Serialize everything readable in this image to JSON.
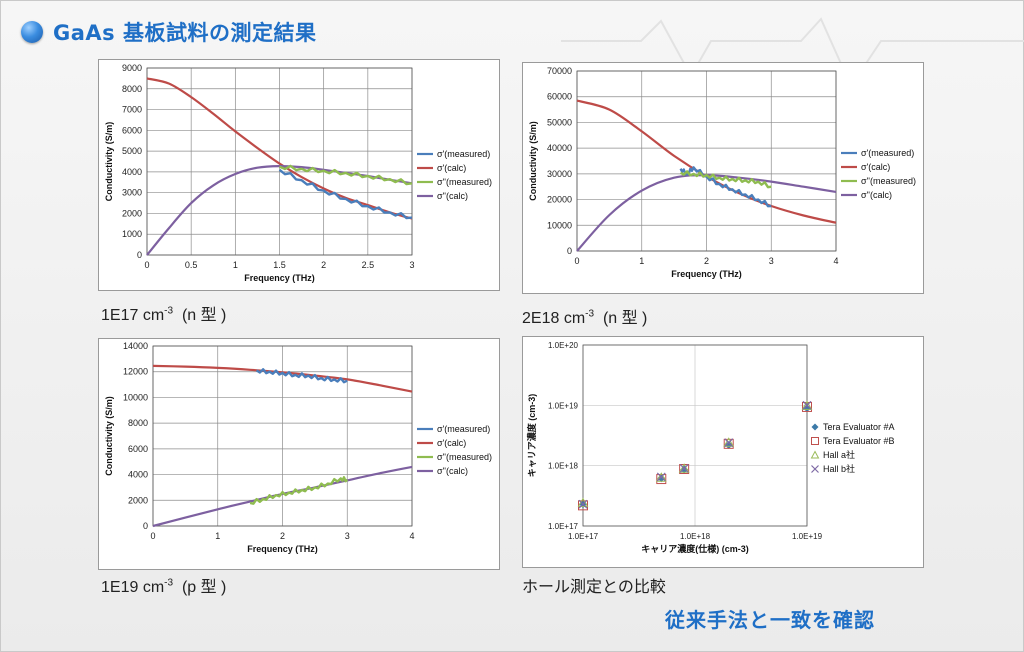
{
  "slide": {
    "title": "GaAs 基板試料の測定結果",
    "conclusion": "従来手法と一致を確認"
  },
  "colors": {
    "title_blue": "#1f6fc6",
    "sigma1_measured": "#4a7ebb",
    "sigma1_calc": "#be4b48",
    "sigma2_measured": "#8fbc50",
    "sigma2_calc": "#7d60a0",
    "tera_a": "#3c7aa8",
    "tera_b": "#c0504d",
    "hall_a": "#9bbb59",
    "hall_b": "#7e6aa6"
  },
  "captions": {
    "c1_main": "1E17 cm",
    "c1_exp": "-3",
    "c1_type": "(n 型 )",
    "c2_main": "2E18 cm",
    "c2_exp": "-3",
    "c2_type": "(n 型 )",
    "c3_main": "1E19 cm",
    "c3_exp": "-3",
    "c3_type": "(p 型 )",
    "c4": "ホール測定との比較"
  },
  "chart_data": [
    {
      "id": "chart1",
      "type": "line",
      "xlabel": "Frequency (THz)",
      "ylabel": "Conductivity (S/m)",
      "xlim": [
        0,
        3
      ],
      "ylim": [
        0,
        9000
      ],
      "xticks": [
        "0",
        "0.5",
        "1",
        "1.5",
        "2",
        "2.5",
        "3"
      ],
      "yticks": [
        "0",
        "1000",
        "2000",
        "3000",
        "4000",
        "5000",
        "6000",
        "7000",
        "8000",
        "9000"
      ],
      "grid": true,
      "legend": "right",
      "series": [
        {
          "name": "σ'(measured)",
          "x": [
            1.5,
            1.75,
            2.0,
            2.25,
            2.5,
            2.75,
            3.0
          ],
          "values": [
            4100,
            3600,
            3100,
            2700,
            2350,
            2050,
            1800
          ]
        },
        {
          "name": "σ'(calc)",
          "x": [
            0,
            0.25,
            0.5,
            0.75,
            1.0,
            1.25,
            1.5,
            1.75,
            2.0,
            2.25,
            2.5,
            2.75,
            3.0
          ],
          "values": [
            8500,
            8250,
            7600,
            6800,
            5950,
            5150,
            4400,
            3750,
            3200,
            2750,
            2400,
            2050,
            1750
          ]
        },
        {
          "name": "σ''(measured)",
          "x": [
            1.5,
            1.75,
            2.0,
            2.25,
            2.5,
            2.75,
            3.0
          ],
          "values": [
            4250,
            4150,
            4050,
            3950,
            3800,
            3650,
            3450
          ]
        },
        {
          "name": "σ''(calc)",
          "x": [
            0,
            0.25,
            0.5,
            0.75,
            1.0,
            1.25,
            1.5,
            1.75,
            2.0,
            2.25,
            2.5,
            2.75,
            3.0
          ],
          "values": [
            0,
            1300,
            2500,
            3350,
            3900,
            4200,
            4280,
            4230,
            4100,
            3950,
            3800,
            3620,
            3450
          ]
        }
      ]
    },
    {
      "id": "chart2",
      "type": "line",
      "xlabel": "Frequency (THz)",
      "ylabel": "Conductivity (S/m)",
      "xlim": [
        0,
        4
      ],
      "ylim": [
        0,
        70000
      ],
      "xticks": [
        "0",
        "1",
        "2",
        "3",
        "4"
      ],
      "yticks": [
        "0",
        "10000",
        "20000",
        "30000",
        "40000",
        "50000",
        "60000",
        "70000"
      ],
      "grid": true,
      "legend": "right",
      "series": [
        {
          "name": "σ'(measured)",
          "x": [
            1.6,
            1.7,
            1.8,
            2.0,
            2.2,
            2.4,
            2.6,
            2.8,
            3.0
          ],
          "values": [
            32000,
            30000,
            32500,
            29000,
            26000,
            24000,
            22000,
            20000,
            17500
          ]
        },
        {
          "name": "σ'(calc)",
          "x": [
            0,
            0.5,
            1.0,
            1.5,
            2.0,
            2.5,
            3.0,
            3.5,
            4.0
          ],
          "values": [
            58500,
            55000,
            46500,
            37000,
            29000,
            22500,
            17500,
            13800,
            11000
          ]
        },
        {
          "name": "σ''(measured)",
          "x": [
            1.6,
            1.8,
            2.0,
            2.2,
            2.4,
            2.6,
            2.8,
            3.0
          ],
          "values": [
            30500,
            30000,
            29500,
            28500,
            28000,
            27500,
            27000,
            25000
          ]
        },
        {
          "name": "σ''(calc)",
          "x": [
            0,
            0.5,
            1.0,
            1.5,
            2.0,
            2.5,
            3.0,
            3.5,
            4.0
          ],
          "values": [
            0,
            14000,
            23500,
            28500,
            29500,
            28500,
            27000,
            25000,
            23000
          ]
        }
      ]
    },
    {
      "id": "chart3",
      "type": "line",
      "xlabel": "Frequency (THz)",
      "ylabel": "Conductivity (S/m)",
      "xlim": [
        0,
        4
      ],
      "ylim": [
        0,
        14000
      ],
      "xticks": [
        "0",
        "1",
        "2",
        "3",
        "4"
      ],
      "yticks": [
        "0",
        "2000",
        "4000",
        "6000",
        "8000",
        "10000",
        "12000",
        "14000"
      ],
      "grid": true,
      "legend": "right",
      "series": [
        {
          "name": "σ'(measured)",
          "x": [
            1.6,
            1.8,
            2.0,
            2.2,
            2.4,
            2.6,
            2.8,
            3.0
          ],
          "values": [
            12100,
            12000,
            11900,
            11750,
            11700,
            11500,
            11400,
            11300
          ]
        },
        {
          "name": "σ'(calc)",
          "x": [
            0,
            0.5,
            1.0,
            1.5,
            2.0,
            2.5,
            3.0,
            3.5,
            4.0
          ],
          "values": [
            12450,
            12400,
            12300,
            12150,
            11950,
            11700,
            11400,
            10950,
            10450
          ]
        },
        {
          "name": "σ''(measured)",
          "x": [
            1.5,
            1.7,
            1.9,
            2.1,
            2.3,
            2.5,
            2.7,
            2.9,
            3.0
          ],
          "values": [
            1800,
            2100,
            2400,
            2600,
            2800,
            3000,
            3300,
            3700,
            3600
          ]
        },
        {
          "name": "σ''(calc)",
          "x": [
            0,
            0.5,
            1.0,
            1.5,
            2.0,
            2.5,
            3.0,
            3.5,
            4.0
          ],
          "values": [
            0,
            650,
            1300,
            1900,
            2500,
            3000,
            3550,
            4100,
            4600
          ]
        }
      ]
    },
    {
      "id": "chart4",
      "type": "scatter",
      "xscale": "log",
      "yscale": "log",
      "xlabel": "キャリア濃度(仕様) (cm-3)",
      "ylabel": "キャリア濃度 (cm-3)",
      "xlim": [
        1e+17,
        1e+19
      ],
      "ylim": [
        1e+17,
        1e+20
      ],
      "xticks": [
        "1.0E+17",
        "1.0E+18",
        "1.0E+19"
      ],
      "yticks": [
        "1.0E+17",
        "1.0E+18",
        "1.0E+19",
        "1.0E+20"
      ],
      "grid": true,
      "legend": "right",
      "series": [
        {
          "name": "Tera Evaluator #A",
          "x": [
            1e+17,
            5e+17,
            8e+17,
            2e+18,
            1e+19
          ],
          "values": [
            2.3e+17,
            6.2e+17,
            8.6e+17,
            2.2e+18,
            9e+18
          ]
        },
        {
          "name": "Tera Evaluator #B",
          "x": [
            1e+17,
            5e+17,
            8e+17,
            2e+18,
            1e+19
          ],
          "values": [
            2.2e+17,
            6e+17,
            8.8e+17,
            2.3e+18,
            9.4e+18
          ]
        },
        {
          "name": "Hall a社",
          "x": [
            1e+17,
            5e+17,
            8e+17,
            2e+18,
            1e+19
          ],
          "values": [
            2.4e+17,
            6.3e+17,
            8.9e+17,
            2.4e+18,
            9.8e+18
          ]
        },
        {
          "name": "Hall b社",
          "x": [
            1e+17,
            5e+17,
            8e+17,
            2e+18,
            1e+19
          ],
          "values": [
            2.3e+17,
            6.5e+17,
            9e+17,
            2.4e+18,
            1e+19
          ]
        }
      ]
    }
  ]
}
